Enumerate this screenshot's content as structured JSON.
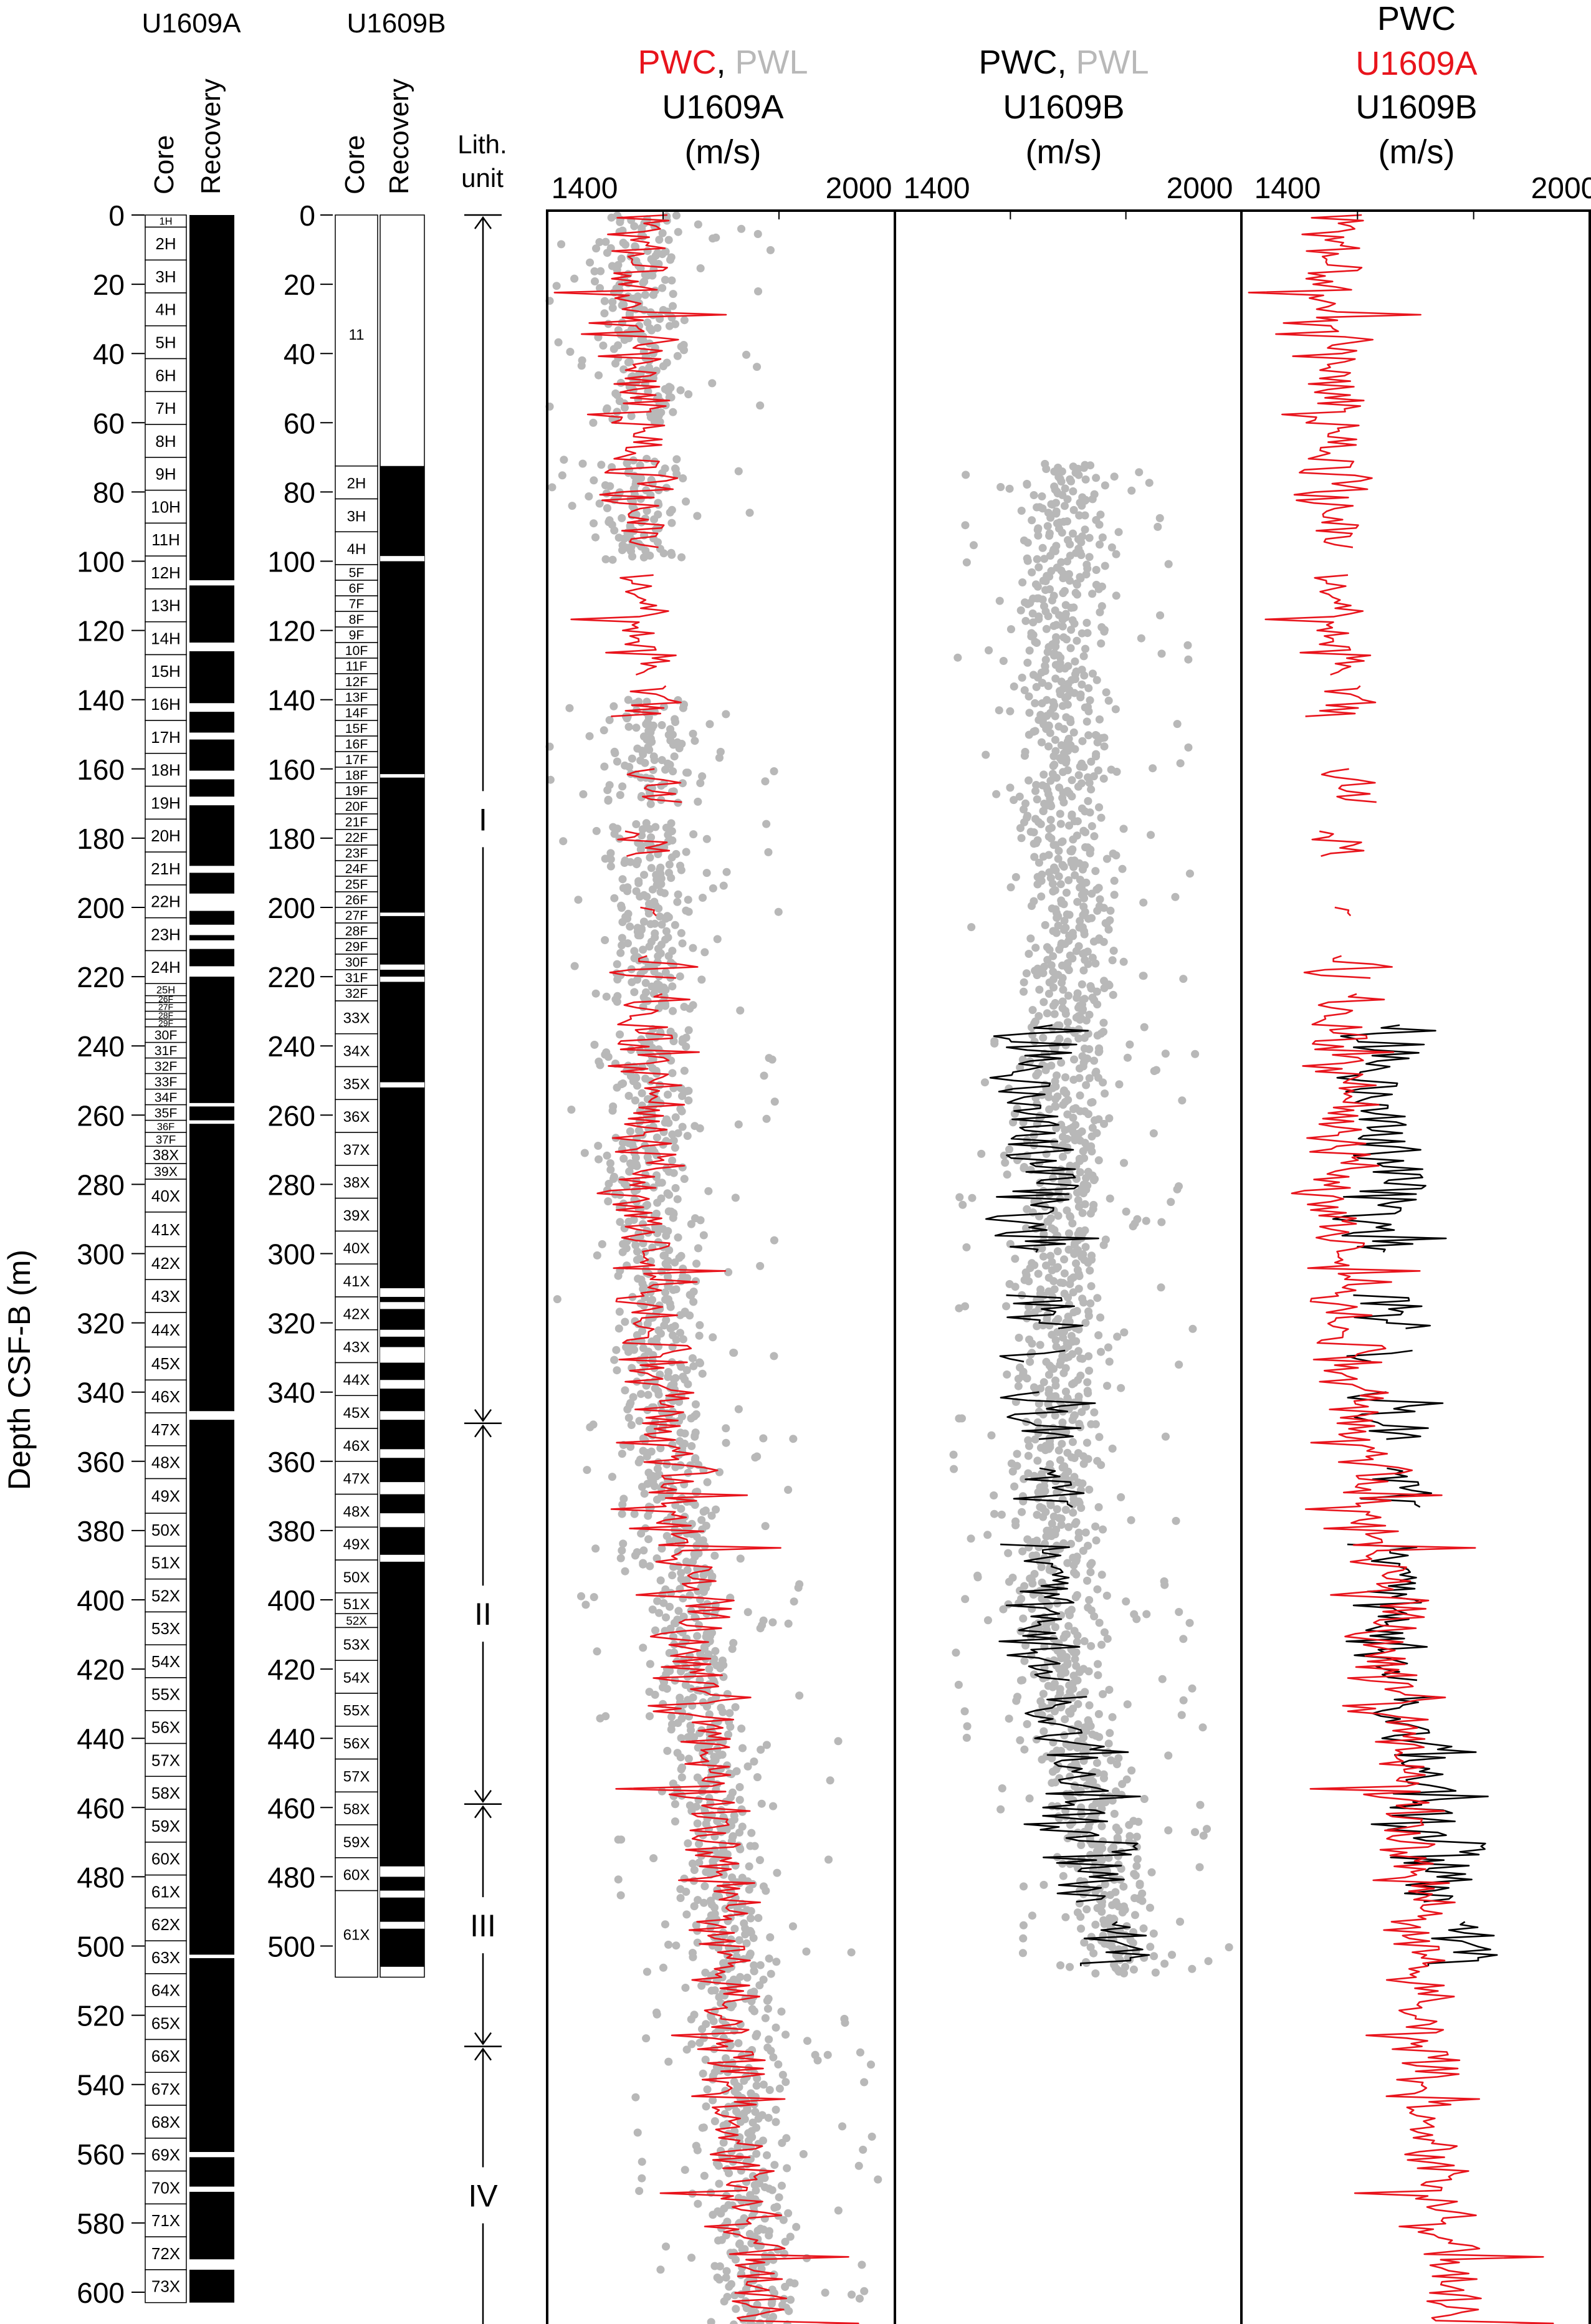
{
  "figure": {
    "y_axis_label": "Depth CSF-B (m)",
    "depth_ticks": [
      "0",
      "20",
      "40",
      "60",
      "80",
      "100",
      "120",
      "140",
      "160",
      "180",
      "200",
      "220",
      "240",
      "260",
      "280",
      "300",
      "320",
      "340",
      "360",
      "380",
      "400",
      "420",
      "440",
      "460",
      "480",
      "500",
      "520",
      "540",
      "560",
      "580",
      "600"
    ],
    "depth_ticks_b": [
      "0",
      "20",
      "40",
      "60",
      "80",
      "100",
      "120",
      "140",
      "160",
      "180",
      "200",
      "220",
      "240",
      "260",
      "280",
      "300",
      "320",
      "340",
      "360",
      "380",
      "400",
      "420",
      "440",
      "460",
      "480",
      "500"
    ],
    "core_columns": {
      "hole_a_title": "U1609A",
      "hole_b_title": "U1609B",
      "core_label": "Core",
      "recovery_label": "Recovery",
      "lith_label_1": "Lith.",
      "lith_label_2": "unit"
    },
    "colors": {
      "pwc_a": "#e8141c",
      "pwc_b": "#000000",
      "pwl": "#b8b8b8",
      "recovery": "#000000"
    },
    "panel_titles": {
      "p1": {
        "pwc": "PWC",
        "sep": ",",
        "pwl": "PWL",
        "hole": "U1609A",
        "unit": "(m/s)"
      },
      "p2": {
        "pwc": "PWC",
        "sep": ",",
        "pwl": "PWL",
        "hole": "U1609B",
        "unit": "(m/s)"
      },
      "p3": {
        "pwc": "PWC",
        "hole_a": "U1609A",
        "hole_b": "U1609B",
        "unit": "(m/s)"
      }
    },
    "x_ticks": {
      "min_label": "1400",
      "max_label": "2000"
    }
  },
  "hole_a_cores": [
    {
      "label": "1H",
      "top": 0,
      "bottom": 3.5
    },
    {
      "label": "2H",
      "top": 3.5,
      "bottom": 13
    },
    {
      "label": "3H",
      "top": 13,
      "bottom": 22.5
    },
    {
      "label": "4H",
      "top": 22.5,
      "bottom": 32
    },
    {
      "label": "5H",
      "top": 32,
      "bottom": 41.5
    },
    {
      "label": "6H",
      "top": 41.5,
      "bottom": 51
    },
    {
      "label": "7H",
      "top": 51,
      "bottom": 60.5
    },
    {
      "label": "8H",
      "top": 60.5,
      "bottom": 70
    },
    {
      "label": "9H",
      "top": 70,
      "bottom": 79.5
    },
    {
      "label": "10H",
      "top": 79.5,
      "bottom": 89
    },
    {
      "label": "11H",
      "top": 89,
      "bottom": 98.5
    },
    {
      "label": "12H",
      "top": 98.5,
      "bottom": 108
    },
    {
      "label": "13H",
      "top": 108,
      "bottom": 117.5
    },
    {
      "label": "14H",
      "top": 117.5,
      "bottom": 127
    },
    {
      "label": "15H",
      "top": 127,
      "bottom": 136.5
    },
    {
      "label": "16H",
      "top": 136.5,
      "bottom": 146
    },
    {
      "label": "17H",
      "top": 146,
      "bottom": 155.5
    },
    {
      "label": "18H",
      "top": 155.5,
      "bottom": 165
    },
    {
      "label": "19H",
      "top": 165,
      "bottom": 174.5
    },
    {
      "label": "20H",
      "top": 174.5,
      "bottom": 184
    },
    {
      "label": "21H",
      "top": 184,
      "bottom": 193.5
    },
    {
      "label": "22H",
      "top": 193.5,
      "bottom": 203
    },
    {
      "label": "23H",
      "top": 203,
      "bottom": 212.5
    },
    {
      "label": "24H",
      "top": 212.5,
      "bottom": 222
    },
    {
      "label": "25H",
      "top": 222,
      "bottom": 225.5
    },
    {
      "label": "26F",
      "top": 225.5,
      "bottom": 227.5
    },
    {
      "label": "27F",
      "top": 227.5,
      "bottom": 230
    },
    {
      "label": "28F",
      "top": 230,
      "bottom": 232.3
    },
    {
      "label": "29F",
      "top": 232.3,
      "bottom": 234.5
    },
    {
      "label": "30F",
      "top": 234.5,
      "bottom": 239
    },
    {
      "label": "31F",
      "top": 239,
      "bottom": 243.5
    },
    {
      "label": "32F",
      "top": 243.5,
      "bottom": 248
    },
    {
      "label": "33F",
      "top": 248,
      "bottom": 252.5
    },
    {
      "label": "34F",
      "top": 252.5,
      "bottom": 257
    },
    {
      "label": "35F",
      "top": 257,
      "bottom": 261.5
    },
    {
      "label": "36F",
      "top": 261.5,
      "bottom": 265
    },
    {
      "label": "37F",
      "top": 265,
      "bottom": 269
    },
    {
      "label": "38X",
      "top": 269,
      "bottom": 274
    },
    {
      "label": "39X",
      "top": 274,
      "bottom": 278.5
    },
    {
      "label": "40X",
      "top": 278.5,
      "bottom": 288
    },
    {
      "label": "41X",
      "top": 288,
      "bottom": 298
    },
    {
      "label": "42X",
      "top": 298,
      "bottom": 307.5
    },
    {
      "label": "43X",
      "top": 307.5,
      "bottom": 317
    },
    {
      "label": "44X",
      "top": 317,
      "bottom": 327
    },
    {
      "label": "45X",
      "top": 327,
      "bottom": 336.5
    },
    {
      "label": "46X",
      "top": 336.5,
      "bottom": 346
    },
    {
      "label": "47X",
      "top": 346,
      "bottom": 355.5
    },
    {
      "label": "48X",
      "top": 355.5,
      "bottom": 365
    },
    {
      "label": "49X",
      "top": 365,
      "bottom": 375
    },
    {
      "label": "50X",
      "top": 375,
      "bottom": 384.5
    },
    {
      "label": "51X",
      "top": 384.5,
      "bottom": 394
    },
    {
      "label": "52X",
      "top": 394,
      "bottom": 403.5
    },
    {
      "label": "53X",
      "top": 403.5,
      "bottom": 413
    },
    {
      "label": "54X",
      "top": 413,
      "bottom": 422.5
    },
    {
      "label": "55X",
      "top": 422.5,
      "bottom": 432
    },
    {
      "label": "56X",
      "top": 432,
      "bottom": 441.5
    },
    {
      "label": "57X",
      "top": 441.5,
      "bottom": 451
    },
    {
      "label": "58X",
      "top": 451,
      "bottom": 460.5
    },
    {
      "label": "59X",
      "top": 460.5,
      "bottom": 470
    },
    {
      "label": "60X",
      "top": 470,
      "bottom": 479.5
    },
    {
      "label": "61X",
      "top": 479.5,
      "bottom": 489
    },
    {
      "label": "62X",
      "top": 489,
      "bottom": 498.5
    },
    {
      "label": "63X",
      "top": 498.5,
      "bottom": 508
    },
    {
      "label": "64X",
      "top": 508,
      "bottom": 517.5
    },
    {
      "label": "65X",
      "top": 517.5,
      "bottom": 527
    },
    {
      "label": "66X",
      "top": 527,
      "bottom": 536.5
    },
    {
      "label": "67X",
      "top": 536.5,
      "bottom": 546
    },
    {
      "label": "68X",
      "top": 546,
      "bottom": 555.5
    },
    {
      "label": "69X",
      "top": 555.5,
      "bottom": 565
    },
    {
      "label": "70X",
      "top": 565,
      "bottom": 574.5
    },
    {
      "label": "71X",
      "top": 574.5,
      "bottom": 584
    },
    {
      "label": "72X",
      "top": 584,
      "bottom": 593.5
    },
    {
      "label": "73X",
      "top": 593.5,
      "bottom": 603
    }
  ],
  "hole_a_gaps": [
    [
      105.5,
      107
    ],
    [
      123.5,
      126
    ],
    [
      141,
      143.5
    ],
    [
      149.5,
      151.5
    ],
    [
      160.5,
      163
    ],
    [
      168,
      170.5
    ],
    [
      188,
      190
    ],
    [
      196,
      201
    ],
    [
      205,
      208
    ],
    [
      209.5,
      212
    ],
    [
      217,
      220
    ],
    [
      256.5,
      257.5
    ],
    [
      261.5,
      262.5
    ],
    [
      345.5,
      348
    ],
    [
      502.5,
      503.5
    ],
    [
      559.5,
      561
    ],
    [
      569.5,
      571
    ],
    [
      590.5,
      593.5
    ]
  ],
  "hole_b_cores": [
    {
      "label": "11",
      "top": 0,
      "bottom": 72.5,
      "washed": true
    },
    {
      "label": "2H",
      "top": 72.5,
      "bottom": 82
    },
    {
      "label": "3H",
      "top": 82,
      "bottom": 91.5
    },
    {
      "label": "4H",
      "top": 91.5,
      "bottom": 101
    },
    {
      "label": "5F",
      "top": 101,
      "bottom": 105.5
    },
    {
      "label": "6F",
      "top": 105.5,
      "bottom": 110
    },
    {
      "label": "7F",
      "top": 110,
      "bottom": 114.5
    },
    {
      "label": "8F",
      "top": 114.5,
      "bottom": 119
    },
    {
      "label": "9F",
      "top": 119,
      "bottom": 123.5
    },
    {
      "label": "10F",
      "top": 123.5,
      "bottom": 128
    },
    {
      "label": "11F",
      "top": 128,
      "bottom": 132.5
    },
    {
      "label": "12F",
      "top": 132.5,
      "bottom": 137
    },
    {
      "label": "13F",
      "top": 137,
      "bottom": 141.5
    },
    {
      "label": "14F",
      "top": 141.5,
      "bottom": 146
    },
    {
      "label": "15F",
      "top": 146,
      "bottom": 150.5
    },
    {
      "label": "16F",
      "top": 150.5,
      "bottom": 155
    },
    {
      "label": "17F",
      "top": 155,
      "bottom": 159.5
    },
    {
      "label": "18F",
      "top": 159.5,
      "bottom": 164
    },
    {
      "label": "19F",
      "top": 164,
      "bottom": 168.5
    },
    {
      "label": "20F",
      "top": 168.5,
      "bottom": 173
    },
    {
      "label": "21F",
      "top": 173,
      "bottom": 177.5
    },
    {
      "label": "22F",
      "top": 177.5,
      "bottom": 182
    },
    {
      "label": "23F",
      "top": 182,
      "bottom": 186.5
    },
    {
      "label": "24F",
      "top": 186.5,
      "bottom": 191
    },
    {
      "label": "25F",
      "top": 191,
      "bottom": 195.5
    },
    {
      "label": "26F",
      "top": 195.5,
      "bottom": 200
    },
    {
      "label": "27F",
      "top": 200,
      "bottom": 204.5
    },
    {
      "label": "28F",
      "top": 204.5,
      "bottom": 209
    },
    {
      "label": "29F",
      "top": 209,
      "bottom": 213.5
    },
    {
      "label": "30F",
      "top": 213.5,
      "bottom": 218
    },
    {
      "label": "31F",
      "top": 218,
      "bottom": 222.5
    },
    {
      "label": "32F",
      "top": 222.5,
      "bottom": 227
    },
    {
      "label": "33X",
      "top": 227,
      "bottom": 236.5
    },
    {
      "label": "34X",
      "top": 236.5,
      "bottom": 246
    },
    {
      "label": "35X",
      "top": 246,
      "bottom": 255.5
    },
    {
      "label": "36X",
      "top": 255.5,
      "bottom": 265
    },
    {
      "label": "37X",
      "top": 265,
      "bottom": 274.5
    },
    {
      "label": "38X",
      "top": 274.5,
      "bottom": 284
    },
    {
      "label": "39X",
      "top": 284,
      "bottom": 293.5
    },
    {
      "label": "40X",
      "top": 293.5,
      "bottom": 303
    },
    {
      "label": "41X",
      "top": 303,
      "bottom": 312.5
    },
    {
      "label": "42X",
      "top": 312.5,
      "bottom": 322
    },
    {
      "label": "43X",
      "top": 322,
      "bottom": 331.5
    },
    {
      "label": "44X",
      "top": 331.5,
      "bottom": 341
    },
    {
      "label": "45X",
      "top": 341,
      "bottom": 350.5
    },
    {
      "label": "46X",
      "top": 350.5,
      "bottom": 360
    },
    {
      "label": "47X",
      "top": 360,
      "bottom": 369.5
    },
    {
      "label": "48X",
      "top": 369.5,
      "bottom": 379
    },
    {
      "label": "49X",
      "top": 379,
      "bottom": 388.5
    },
    {
      "label": "50X",
      "top": 388.5,
      "bottom": 398
    },
    {
      "label": "51X",
      "top": 398,
      "bottom": 404
    },
    {
      "label": "52X",
      "top": 404,
      "bottom": 408
    },
    {
      "label": "53X",
      "top": 408,
      "bottom": 417.5
    },
    {
      "label": "54X",
      "top": 417.5,
      "bottom": 427
    },
    {
      "label": "55X",
      "top": 427,
      "bottom": 436.5
    },
    {
      "label": "56X",
      "top": 436.5,
      "bottom": 446
    },
    {
      "label": "57X",
      "top": 446,
      "bottom": 455.5
    },
    {
      "label": "58X",
      "top": 455.5,
      "bottom": 465
    },
    {
      "label": "59X",
      "top": 465,
      "bottom": 474.5
    },
    {
      "label": "60X",
      "top": 474.5,
      "bottom": 484
    },
    {
      "label": "61X",
      "top": 484,
      "bottom": 509
    }
  ],
  "hole_b_gaps": [
    [
      98.5,
      100
    ],
    [
      161.5,
      162.5
    ],
    [
      201.5,
      202.5
    ],
    [
      216.5,
      218
    ],
    [
      220,
      221.5
    ],
    [
      250.5,
      252
    ],
    [
      310,
      312.5
    ],
    [
      314,
      316
    ],
    [
      322,
      324
    ],
    [
      327,
      331.5
    ],
    [
      336.5,
      339
    ],
    [
      345.5,
      348
    ],
    [
      356.5,
      359
    ],
    [
      366,
      369.5
    ],
    [
      375,
      379
    ],
    [
      387,
      389
    ],
    [
      477,
      480
    ],
    [
      484,
      486
    ],
    [
      493,
      495
    ]
  ],
  "lith_units": [
    {
      "label": "I",
      "top": 0,
      "bottom": 349
    },
    {
      "label": "II",
      "top": 349,
      "bottom": 459
    },
    {
      "label": "III",
      "top": 459,
      "bottom": 529
    },
    {
      "label": "IV",
      "top": 529,
      "bottom": 615
    }
  ],
  "chart_data": {
    "type": "scatter",
    "y_label": "Depth CSF-B (m)",
    "y_range": [
      0,
      615
    ],
    "x_unit": "m/s",
    "x_range": [
      1400,
      2000
    ],
    "panels": [
      {
        "name": "PWC, PWL U1609A",
        "series": [
          "PWC U1609A",
          "PWL U1609A"
        ]
      },
      {
        "name": "PWC, PWL U1609B",
        "series": [
          "PWC U1609B",
          "PWL U1609B"
        ]
      },
      {
        "name": "PWC U1609A U1609B",
        "series": [
          "PWC U1609A",
          "PWC U1609B"
        ]
      }
    ],
    "series": [
      {
        "name": "PWC U1609A",
        "type": "line",
        "color": "#e8141c",
        "profile": {
          "depth": [
            0,
            20,
            60,
            100,
            150,
            200,
            230,
            300,
            350,
            400,
            460,
            500,
            560,
            610
          ],
          "velocity": [
            1565,
            1555,
            1560,
            1565,
            1570,
            1580,
            1575,
            1575,
            1600,
            1640,
            1680,
            1710,
            1730,
            1760
          ]
        },
        "segments": [
          [
            0,
            96
          ],
          [
            104,
            133
          ],
          [
            136,
            145
          ],
          [
            160,
            170
          ],
          [
            178,
            186
          ],
          [
            200,
            203
          ],
          [
            214,
            221
          ],
          [
            225,
            610
          ]
        ]
      },
      {
        "name": "PWL U1609A",
        "type": "scatter",
        "color": "#b8b8b8",
        "profile": {
          "depth": [
            0,
            20,
            60,
            100,
            150,
            200,
            230,
            300,
            350,
            400,
            460,
            500,
            560,
            610
          ],
          "velocity": [
            1570,
            1560,
            1570,
            1565,
            1570,
            1580,
            1580,
            1580,
            1600,
            1640,
            1690,
            1720,
            1740,
            1760
          ]
        },
        "segments": [
          [
            0,
            60
          ],
          [
            70,
            100
          ],
          [
            140,
            170
          ],
          [
            175,
            230
          ],
          [
            235,
            610
          ]
        ]
      },
      {
        "name": "PWL U1609B",
        "type": "scatter",
        "color": "#b8b8b8",
        "profile": {
          "depth": [
            72,
            100,
            150,
            200,
            230,
            300,
            350,
            400,
            430,
            460,
            480,
            508
          ],
          "velocity": [
            1695,
            1690,
            1695,
            1700,
            1700,
            1690,
            1685,
            1680,
            1695,
            1740,
            1770,
            1800
          ]
        },
        "segments": [
          [
            72,
            508
          ]
        ]
      },
      {
        "name": "PWC U1609B",
        "type": "line",
        "color": "#000000",
        "profile": {
          "depth": [
            235,
            260,
            280,
            300,
            320,
            350,
            380,
            400,
            420,
            440,
            460,
            480,
            500,
            508
          ],
          "velocity": [
            1640,
            1630,
            1660,
            1650,
            1660,
            1665,
            1650,
            1680,
            1650,
            1690,
            1720,
            1760,
            1770,
            1780
          ]
        },
        "segments": [
          [
            234,
            300
          ],
          [
            312,
            322
          ],
          [
            328,
            332
          ],
          [
            340,
            354
          ],
          [
            362,
            374
          ],
          [
            384,
            424
          ],
          [
            428,
            488
          ],
          [
            493,
            506
          ]
        ]
      }
    ],
    "lithologic_units": [
      "I",
      "II",
      "III",
      "IV"
    ]
  }
}
